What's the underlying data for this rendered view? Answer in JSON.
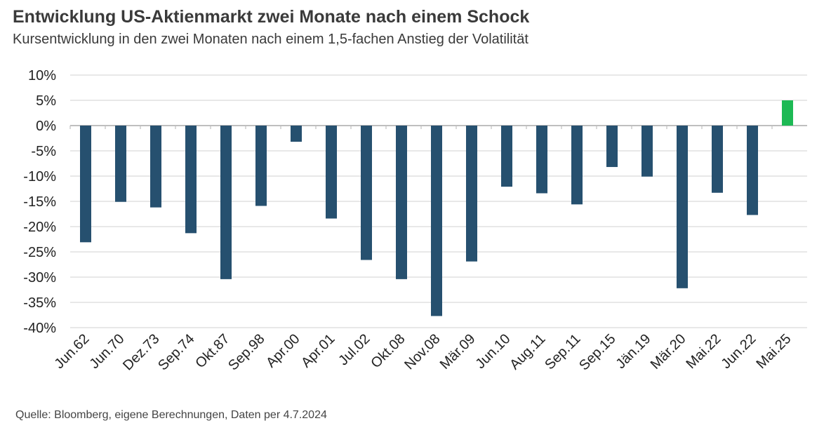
{
  "title": "Entwicklung US-Aktienmarkt zwei Monate nach einem Schock",
  "subtitle": "Kursentwicklung in den zwei Monaten nach einem 1,5-fachen Anstieg der Volatilität",
  "source": "Quelle: Bloomberg, eigene Berechnungen, Daten per 4.7.2024",
  "colors": {
    "negative": "#26506f",
    "positive": "#1db954",
    "grid": "#d9d9d9",
    "axis": "#bfbfbf"
  },
  "chart_data": {
    "type": "bar",
    "categories": [
      "Jun.62",
      "Jun.70",
      "Dez.73",
      "Sep.74",
      "Okt.87",
      "Sep.98",
      "Apr.00",
      "Apr.01",
      "Jul.02",
      "Okt.08",
      "Nov.08",
      "Mär.09",
      "Jun.10",
      "Aug.11",
      "Sep.11",
      "Sep.15",
      "Jän.19",
      "Mär.20",
      "Mai.22",
      "Jun.22",
      "Mai.25"
    ],
    "values": [
      -23.1,
      -15.1,
      -16.2,
      -21.3,
      -30.4,
      -15.9,
      -3.2,
      -18.4,
      -26.6,
      -30.4,
      -37.7,
      -26.9,
      -12.1,
      -13.4,
      -15.6,
      -8.2,
      -10.1,
      -32.2,
      -13.3,
      -17.7,
      5.0
    ],
    "ylim": [
      -40,
      10
    ],
    "yticks": [
      10,
      5,
      0,
      -5,
      -10,
      -15,
      -20,
      -25,
      -30,
      -35,
      -40
    ],
    "ytick_labels": [
      "10%",
      "5%",
      "0%",
      "-5%",
      "-10%",
      "-15%",
      "-20%",
      "-25%",
      "-30%",
      "-35%",
      "-40%"
    ],
    "grid": true,
    "legend": "none"
  }
}
